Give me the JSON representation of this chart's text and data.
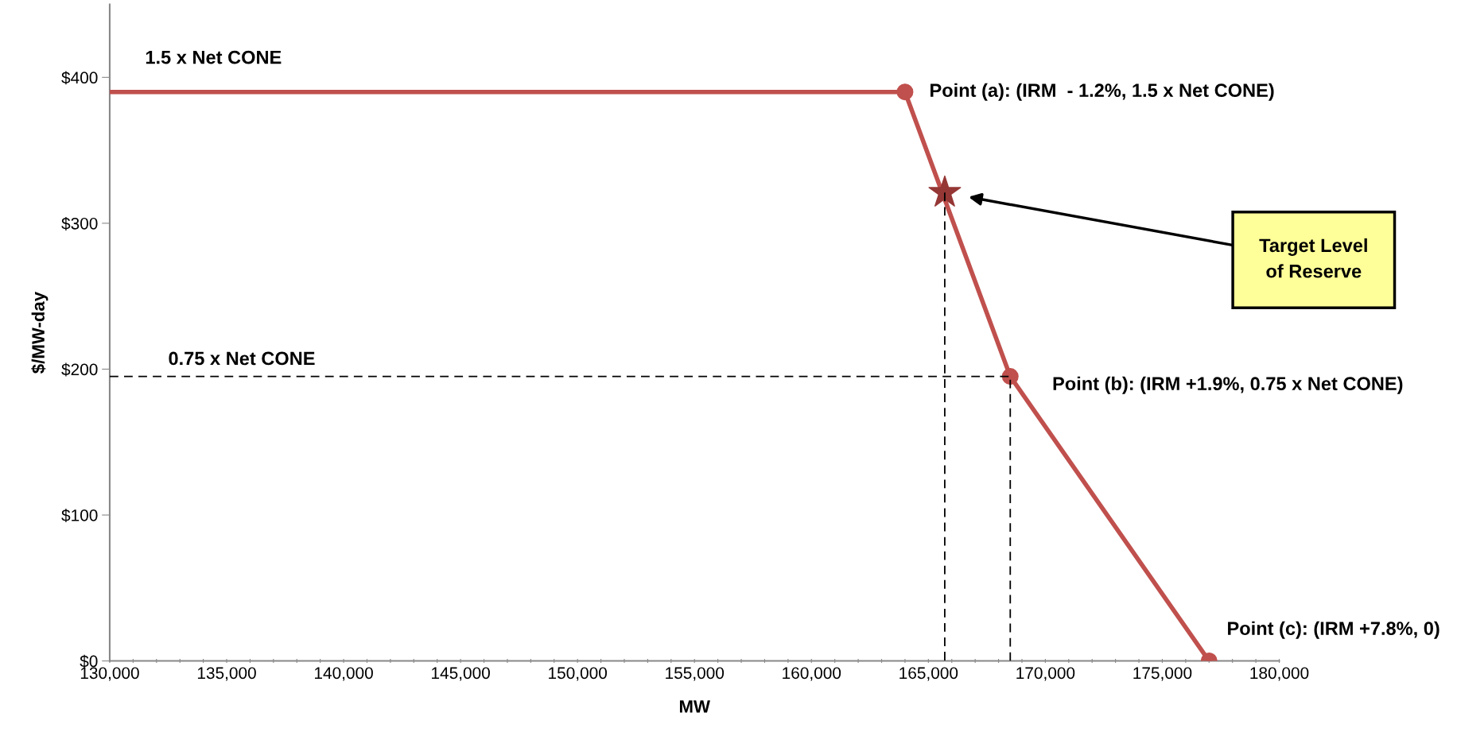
{
  "chart_data": {
    "type": "line",
    "xlabel": "MW",
    "ylabel": "$/MW-day",
    "xlim": [
      130000,
      180000
    ],
    "ylim": [
      0,
      450
    ],
    "xticks": [
      {
        "value": 130000,
        "label": "130,000"
      },
      {
        "value": 131000,
        "label": null
      },
      {
        "value": 132000,
        "label": null
      },
      {
        "value": 133000,
        "label": null
      },
      {
        "value": 134000,
        "label": null
      },
      {
        "value": 135000,
        "label": "135,000"
      },
      {
        "value": 136000,
        "label": null
      },
      {
        "value": 137000,
        "label": null
      },
      {
        "value": 138000,
        "label": null
      },
      {
        "value": 139000,
        "label": null
      },
      {
        "value": 140000,
        "label": "140,000"
      },
      {
        "value": 141000,
        "label": null
      },
      {
        "value": 142000,
        "label": null
      },
      {
        "value": 143000,
        "label": null
      },
      {
        "value": 144000,
        "label": null
      },
      {
        "value": 145000,
        "label": "145,000"
      },
      {
        "value": 146000,
        "label": null
      },
      {
        "value": 147000,
        "label": null
      },
      {
        "value": 148000,
        "label": null
      },
      {
        "value": 149000,
        "label": null
      },
      {
        "value": 150000,
        "label": "150,000"
      },
      {
        "value": 151000,
        "label": null
      },
      {
        "value": 152000,
        "label": null
      },
      {
        "value": 153000,
        "label": null
      },
      {
        "value": 154000,
        "label": null
      },
      {
        "value": 155000,
        "label": "155,000"
      },
      {
        "value": 156000,
        "label": null
      },
      {
        "value": 157000,
        "label": null
      },
      {
        "value": 158000,
        "label": null
      },
      {
        "value": 159000,
        "label": null
      },
      {
        "value": 160000,
        "label": "160,000"
      },
      {
        "value": 161000,
        "label": null
      },
      {
        "value": 162000,
        "label": null
      },
      {
        "value": 163000,
        "label": null
      },
      {
        "value": 164000,
        "label": null
      },
      {
        "value": 165000,
        "label": "165,000"
      },
      {
        "value": 166000,
        "label": null
      },
      {
        "value": 167000,
        "label": null
      },
      {
        "value": 168000,
        "label": null
      },
      {
        "value": 169000,
        "label": null
      },
      {
        "value": 170000,
        "label": "170,000"
      },
      {
        "value": 171000,
        "label": null
      },
      {
        "value": 172000,
        "label": null
      },
      {
        "value": 173000,
        "label": null
      },
      {
        "value": 174000,
        "label": null
      },
      {
        "value": 175000,
        "label": "175,000"
      },
      {
        "value": 176000,
        "label": null
      },
      {
        "value": 177000,
        "label": null
      },
      {
        "value": 178000,
        "label": null
      },
      {
        "value": 179000,
        "label": null
      },
      {
        "value": 180000,
        "label": "180,000"
      }
    ],
    "yticks": [
      {
        "value": 0,
        "label": "$0"
      },
      {
        "value": 100,
        "label": "$100"
      },
      {
        "value": 200,
        "label": "$200"
      },
      {
        "value": 300,
        "label": "$300"
      },
      {
        "value": 400,
        "label": "$400"
      }
    ],
    "grid": false,
    "legend": false,
    "series": [
      {
        "color": "#c0504d",
        "x": [
          130000,
          164000,
          168500,
          177000
        ],
        "values": [
          390,
          390,
          195,
          0
        ],
        "marker": "none",
        "line_style": "solid"
      },
      {
        "type": "scatter",
        "color": "#c0504d",
        "x": [
          164000,
          168500,
          177000
        ],
        "values": [
          390,
          195,
          0
        ],
        "marker": "circle"
      },
      {
        "type": "scatter",
        "color": "#953735",
        "x": [
          165700
        ],
        "values": [
          321
        ],
        "marker": "star"
      },
      {
        "type": "line",
        "color": "#000000",
        "x": [
          130000,
          168500
        ],
        "values": [
          195,
          195
        ],
        "marker": "none",
        "line_style": "dashed"
      },
      {
        "type": "line",
        "color": "#000000",
        "x": [
          165700,
          165700
        ],
        "values": [
          321,
          0
        ],
        "marker": "none",
        "line_style": "dashed"
      },
      {
        "type": "line",
        "color": "#000000",
        "x": [
          168500,
          168500
        ],
        "values": [
          0,
          195
        ],
        "marker": "none",
        "line_style": "dashed"
      }
    ],
    "annotations": [
      {
        "text": "1.5 x Net CONE",
        "x": 130000,
        "y": 390
      },
      "0.75 x Net CONE",
      {
        "text": "Point (a): (IRM  - 1.2%, 1.5 x Net CONE)",
        "x": 164000,
        "y": 390
      },
      {
        "text": "Point (b): (IRM +1.9%, 0.75 x Net CONE)",
        "x": 168500,
        "y": 195
      },
      {
        "text": "Point (c): (IRM +7.8%, 0)",
        "x": 177000,
        "y": 0
      },
      "Target Level\nof Reserve"
    ]
  }
}
